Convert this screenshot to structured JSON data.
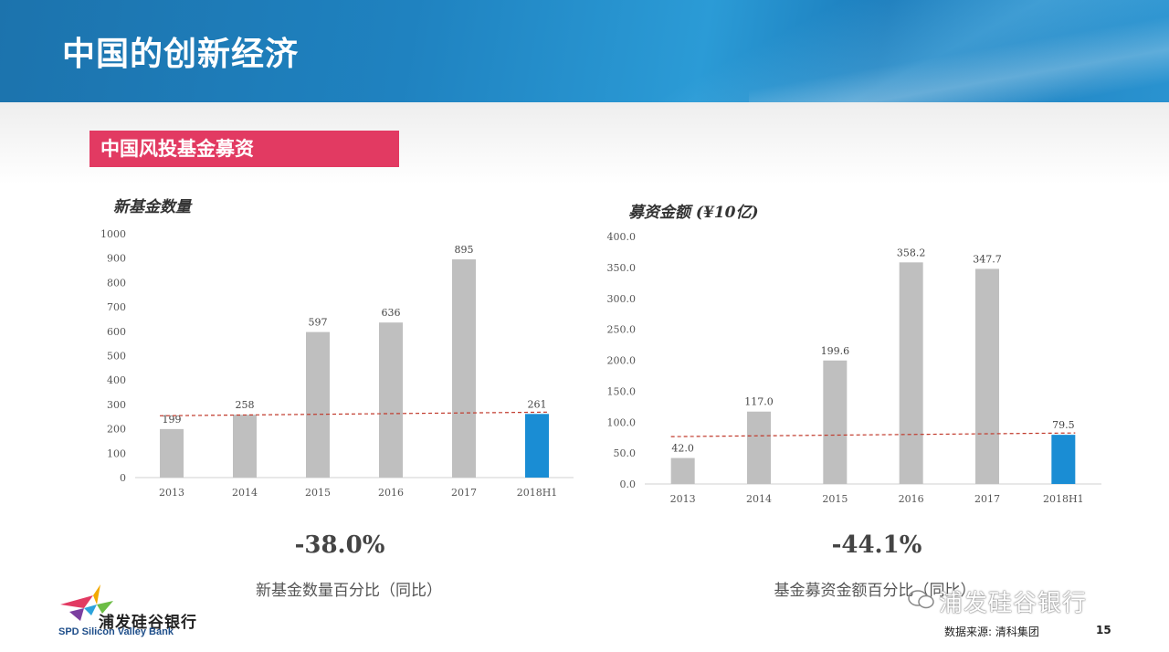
{
  "header": {
    "title": "中国的创新经济"
  },
  "section_tag": "中国风投基金募资",
  "charts_text": {
    "left_title": "新基金数量",
    "right_title": "募资金额 (¥10亿)"
  },
  "summary": {
    "left_pct": "-38.0%",
    "left_caption": "新基金数量百分比（同比）",
    "right_pct": "-44.1%",
    "right_caption": "基金募资金额百分比（同比）"
  },
  "footer": {
    "logo_cn": "浦发硅谷银行",
    "logo_en": "SPD Silicon Valley Bank",
    "wechat": "浦发硅谷银行",
    "source": "数据来源: 清科集团",
    "page": "15"
  },
  "colors": {
    "bar": "#bfbfbf",
    "highlight": "#1a8dd4",
    "refline": "#c0392b",
    "tag": "#e23a62"
  },
  "chart_data": [
    {
      "type": "bar",
      "title": "新基金数量",
      "categories": [
        "2013",
        "2014",
        "2015",
        "2016",
        "2017",
        "2018H1"
      ],
      "values": [
        199,
        258,
        597,
        636,
        895,
        261
      ],
      "value_labels": [
        "199",
        "258",
        "597",
        "636",
        "895",
        "261"
      ],
      "ylim": [
        0,
        1000
      ],
      "yticks": [
        0,
        100,
        200,
        300,
        400,
        500,
        600,
        700,
        800,
        900,
        1000
      ],
      "ytick_labels": [
        "0",
        "100",
        "200",
        "300",
        "400",
        "500",
        "600",
        "700",
        "800",
        "900",
        "1000"
      ],
      "highlight_index": 5,
      "reference_line": 261
    },
    {
      "type": "bar",
      "title": "募资金额 (¥10亿)",
      "categories": [
        "2013",
        "2014",
        "2015",
        "2016",
        "2017",
        "2018H1"
      ],
      "values": [
        42.0,
        117.0,
        199.6,
        358.2,
        347.7,
        79.5
      ],
      "value_labels": [
        "42.0",
        "117.0",
        "199.6",
        "358.2",
        "347.7",
        "79.5"
      ],
      "ylim": [
        0,
        400
      ],
      "yticks": [
        0,
        50,
        100,
        150,
        200,
        250,
        300,
        350,
        400
      ],
      "ytick_labels": [
        "0.0",
        "50.0",
        "100.0",
        "150.0",
        "200.0",
        "250.0",
        "300.0",
        "350.0",
        "400.0"
      ],
      "highlight_index": 5,
      "reference_line": 79.5
    }
  ]
}
